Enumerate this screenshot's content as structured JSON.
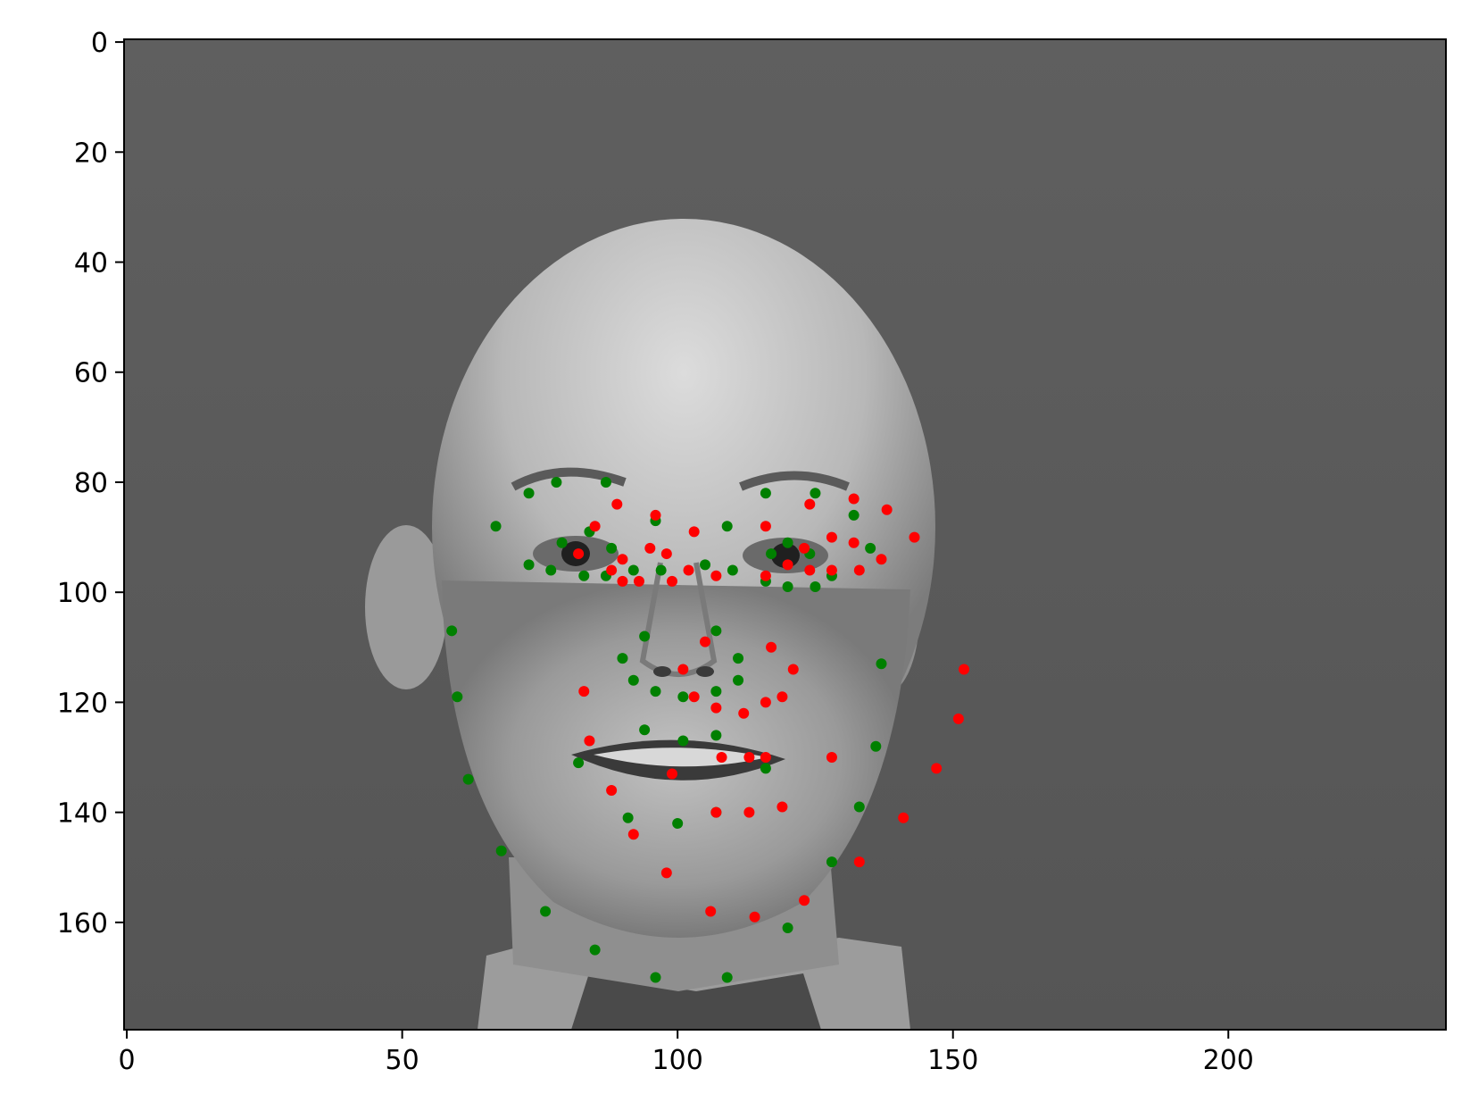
{
  "chart_data": {
    "type": "scatter",
    "title": "",
    "xlabel": "",
    "ylabel": "",
    "xlim": [
      -0.5,
      239.5
    ],
    "ylim": [
      179.5,
      -0.5
    ],
    "y_inverted": true,
    "background": "grayscale photograph of a bald man's face, shown as an image",
    "xticks": [
      0,
      50,
      100,
      150,
      200
    ],
    "yticks": [
      0,
      20,
      40,
      60,
      80,
      100,
      120,
      140,
      160
    ],
    "series": [
      {
        "color": "#008000",
        "points": [
          [
            73,
            82
          ],
          [
            78,
            80
          ],
          [
            87,
            80
          ],
          [
            67,
            88
          ],
          [
            84,
            89
          ],
          [
            79,
            91
          ],
          [
            88,
            92
          ],
          [
            96,
            87
          ],
          [
            73,
            95
          ],
          [
            77,
            96
          ],
          [
            83,
            97
          ],
          [
            87,
            97
          ],
          [
            92,
            96
          ],
          [
            97,
            96
          ],
          [
            105,
            95
          ],
          [
            110,
            96
          ],
          [
            109,
            88
          ],
          [
            116,
            82
          ],
          [
            125,
            82
          ],
          [
            117,
            93
          ],
          [
            120,
            91
          ],
          [
            124,
            93
          ],
          [
            132,
            86
          ],
          [
            135,
            92
          ],
          [
            116,
            98
          ],
          [
            120,
            99
          ],
          [
            125,
            99
          ],
          [
            128,
            97
          ],
          [
            59,
            107
          ],
          [
            60,
            119
          ],
          [
            62,
            134
          ],
          [
            68,
            147
          ],
          [
            76,
            158
          ],
          [
            85,
            165
          ],
          [
            96,
            170
          ],
          [
            109,
            170
          ],
          [
            120,
            161
          ],
          [
            128,
            149
          ],
          [
            133,
            139
          ],
          [
            136,
            128
          ],
          [
            137,
            113
          ],
          [
            107,
            107
          ],
          [
            94,
            108
          ],
          [
            90,
            112
          ],
          [
            92,
            116
          ],
          [
            96,
            118
          ],
          [
            101,
            119
          ],
          [
            107,
            118
          ],
          [
            111,
            116
          ],
          [
            111,
            112
          ],
          [
            94,
            125
          ],
          [
            101,
            127
          ],
          [
            107,
            126
          ],
          [
            116,
            132
          ],
          [
            82,
            131
          ],
          [
            91,
            141
          ],
          [
            100,
            142
          ],
          [
            107,
            140
          ]
        ]
      },
      {
        "color": "#ff0000",
        "points": [
          [
            85,
            88
          ],
          [
            89,
            84
          ],
          [
            96,
            86
          ],
          [
            82,
            93
          ],
          [
            88,
            96
          ],
          [
            90,
            94
          ],
          [
            90,
            98
          ],
          [
            93,
            98
          ],
          [
            95,
            92
          ],
          [
            98,
            93
          ],
          [
            99,
            98
          ],
          [
            103,
            89
          ],
          [
            102,
            96
          ],
          [
            107,
            97
          ],
          [
            116,
            88
          ],
          [
            124,
            84
          ],
          [
            132,
            83
          ],
          [
            138,
            85
          ],
          [
            143,
            90
          ],
          [
            132,
            91
          ],
          [
            128,
            90
          ],
          [
            123,
            92
          ],
          [
            124,
            96
          ],
          [
            120,
            95
          ],
          [
            128,
            96
          ],
          [
            137,
            94
          ],
          [
            133,
            96
          ],
          [
            116,
            97
          ],
          [
            105,
            109
          ],
          [
            101,
            114
          ],
          [
            103,
            119
          ],
          [
            107,
            121
          ],
          [
            112,
            122
          ],
          [
            116,
            120
          ],
          [
            119,
            119
          ],
          [
            121,
            114
          ],
          [
            117,
            110
          ],
          [
            83,
            118
          ],
          [
            84,
            127
          ],
          [
            88,
            136
          ],
          [
            92,
            144
          ],
          [
            98,
            151
          ],
          [
            99,
            133
          ],
          [
            108,
            130
          ],
          [
            113,
            130
          ],
          [
            116,
            130
          ],
          [
            107,
            140
          ],
          [
            113,
            140
          ],
          [
            119,
            139
          ],
          [
            106,
            158
          ],
          [
            114,
            159
          ],
          [
            123,
            156
          ],
          [
            133,
            149
          ],
          [
            141,
            141
          ],
          [
            147,
            132
          ],
          [
            151,
            123
          ],
          [
            152,
            114
          ],
          [
            128,
            130
          ]
        ]
      }
    ]
  }
}
